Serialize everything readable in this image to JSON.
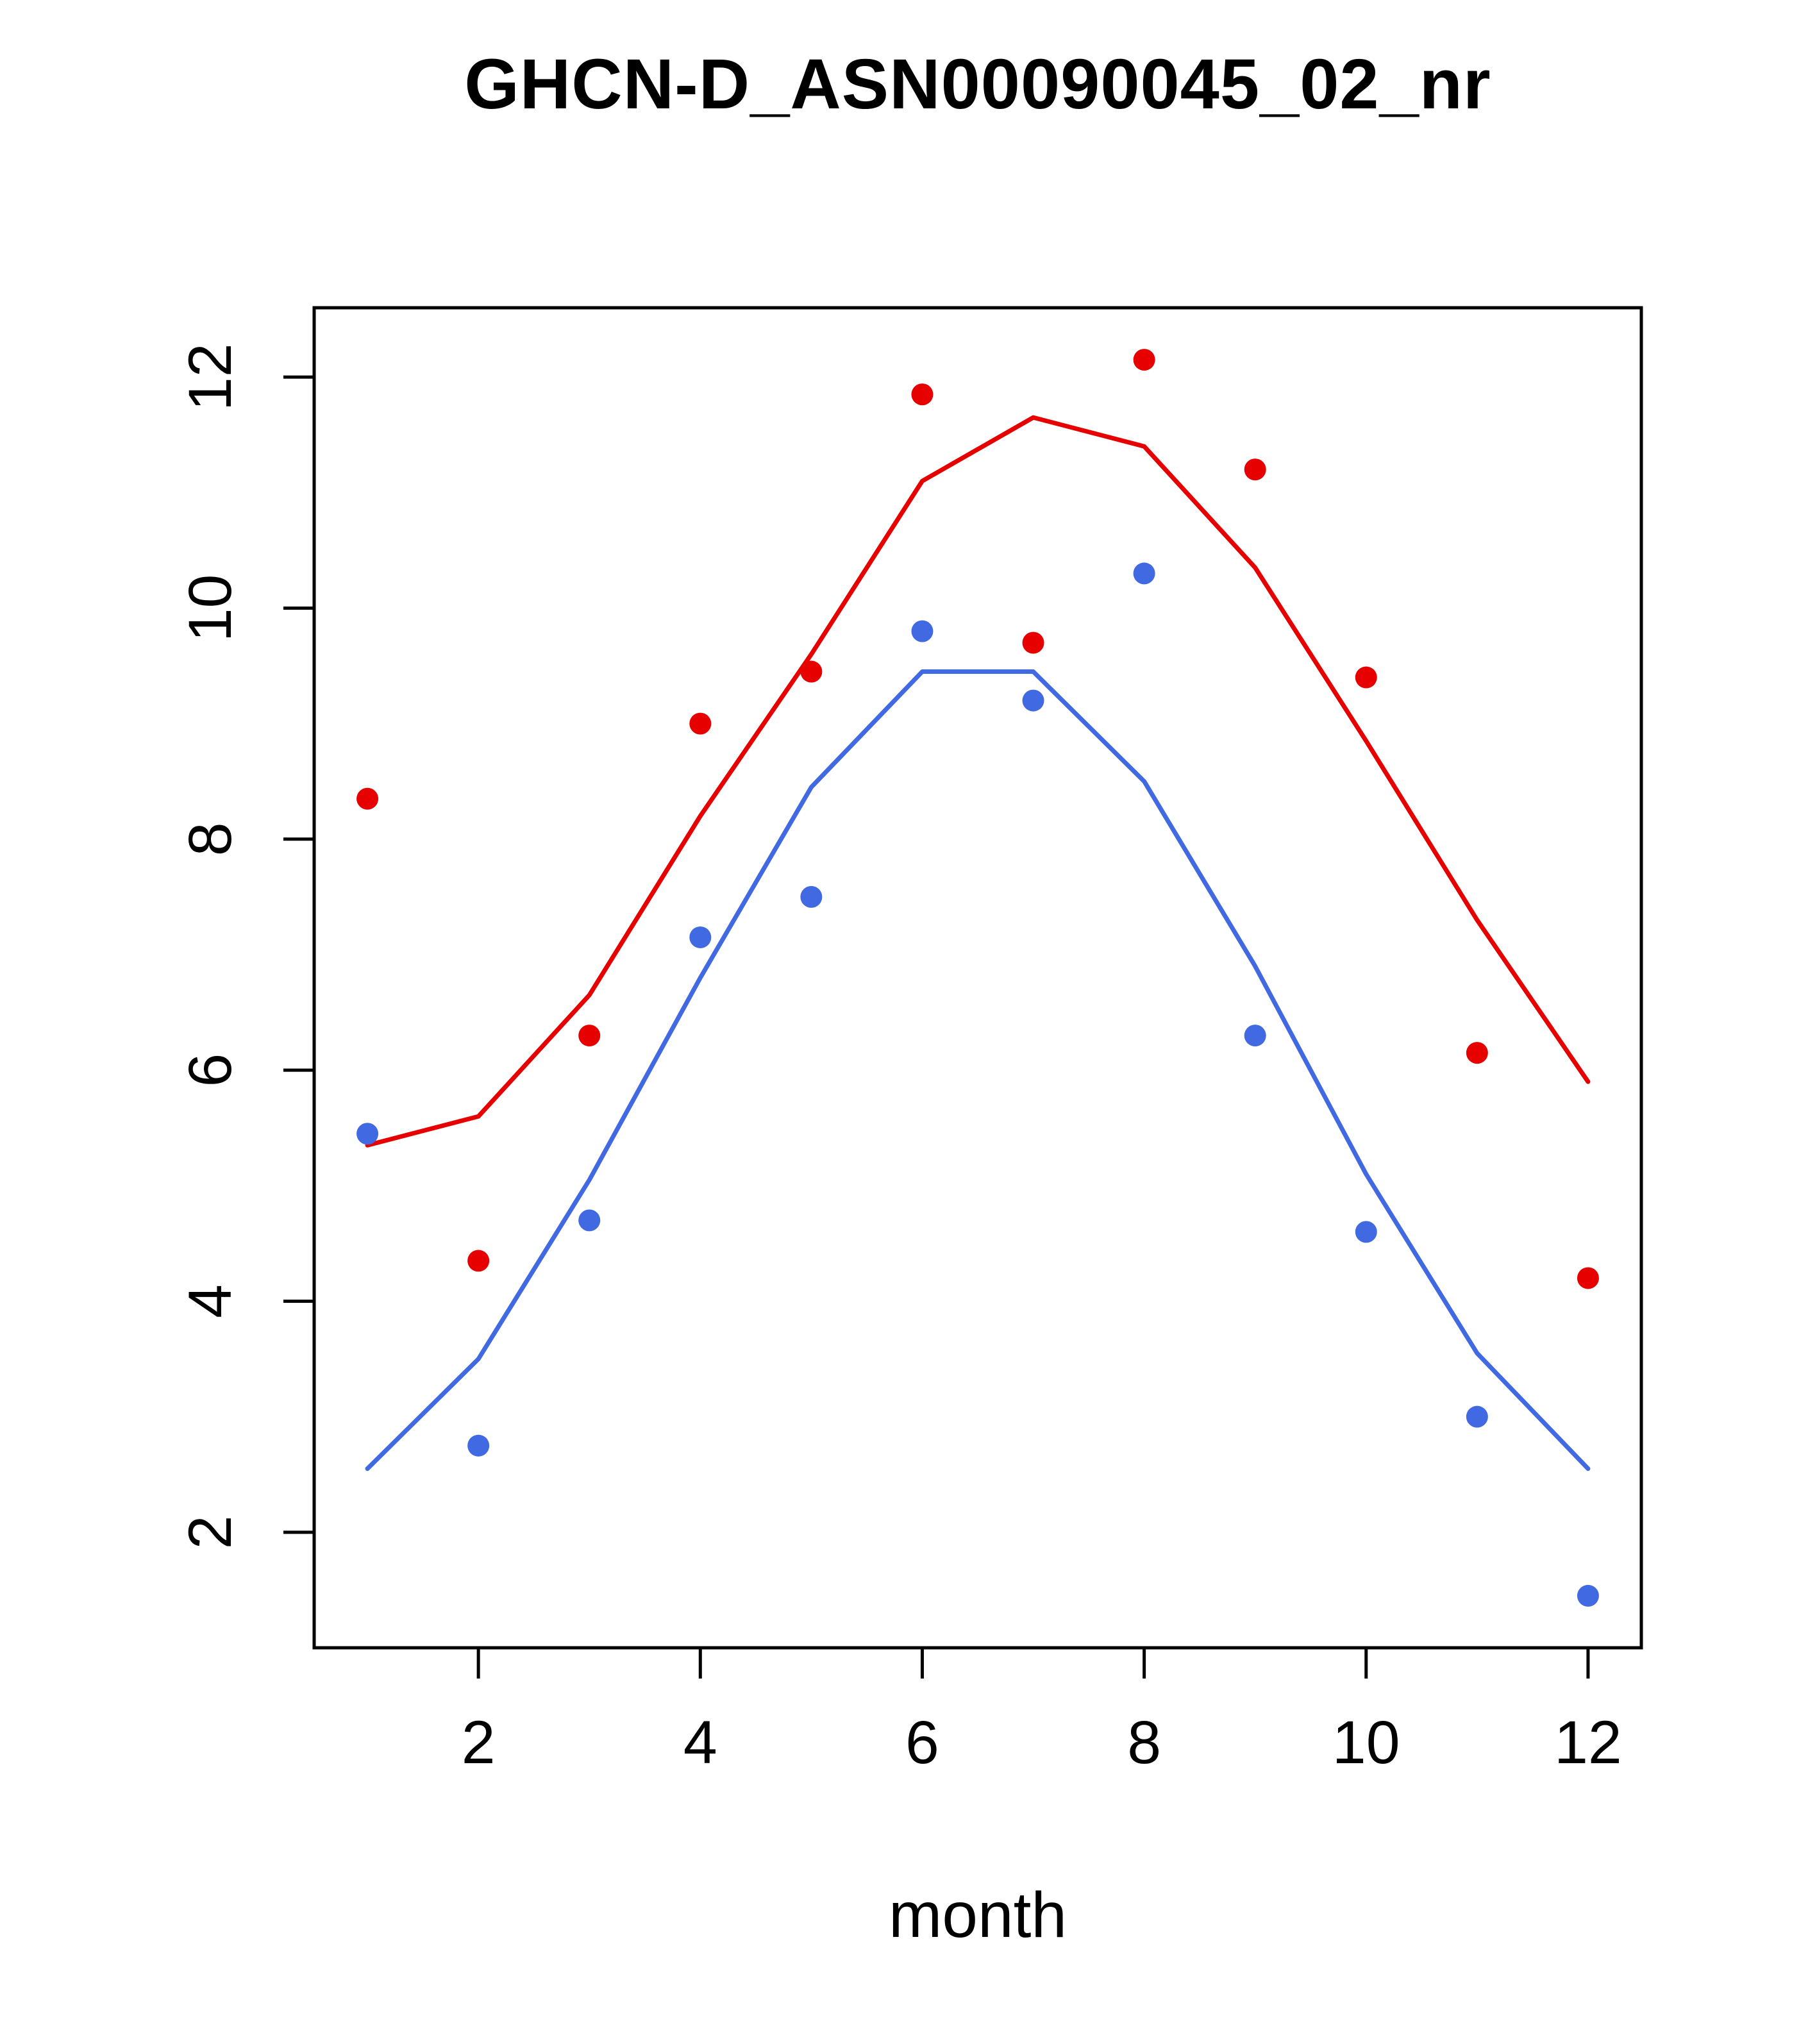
{
  "title": "GHCN-D_ASN00090045_02_nr",
  "chart_data": {
    "type": "line",
    "title": "GHCN-D_ASN00090045_02_nr",
    "xlabel": "month",
    "ylabel": "",
    "x": [
      1,
      2,
      3,
      4,
      5,
      6,
      7,
      8,
      9,
      10,
      11,
      12
    ],
    "xlim": [
      0.52,
      12.48
    ],
    "ylim": [
      1.0,
      12.6
    ],
    "xticks": [
      2,
      4,
      6,
      8,
      10,
      12
    ],
    "yticks": [
      2,
      4,
      6,
      8,
      10,
      12
    ],
    "grid": false,
    "legend": "none",
    "colors": {
      "red": "#e60000",
      "blue": "#4169e1",
      "axis": "#000000"
    },
    "series": [
      {
        "name": "red-line",
        "kind": "line",
        "color": "#e60000",
        "values": [
          5.35,
          5.6,
          6.65,
          8.2,
          9.6,
          11.1,
          11.65,
          11.4,
          10.35,
          8.85,
          7.3,
          5.9
        ]
      },
      {
        "name": "blue-line",
        "kind": "line",
        "color": "#4169e1",
        "values": [
          2.55,
          3.5,
          5.05,
          6.8,
          8.45,
          9.45,
          9.45,
          8.5,
          6.9,
          5.1,
          3.55,
          2.55
        ]
      },
      {
        "name": "red-points",
        "kind": "scatter",
        "color": "#e60000",
        "values": [
          8.35,
          4.35,
          6.3,
          9.0,
          9.45,
          11.85,
          9.7,
          12.15,
          11.2,
          9.4,
          6.15,
          4.2
        ]
      },
      {
        "name": "blue-points",
        "kind": "scatter",
        "color": "#4169e1",
        "values": [
          5.45,
          2.75,
          4.7,
          7.15,
          7.5,
          9.8,
          9.2,
          10.3,
          6.3,
          4.6,
          3.0,
          1.45
        ]
      }
    ]
  }
}
